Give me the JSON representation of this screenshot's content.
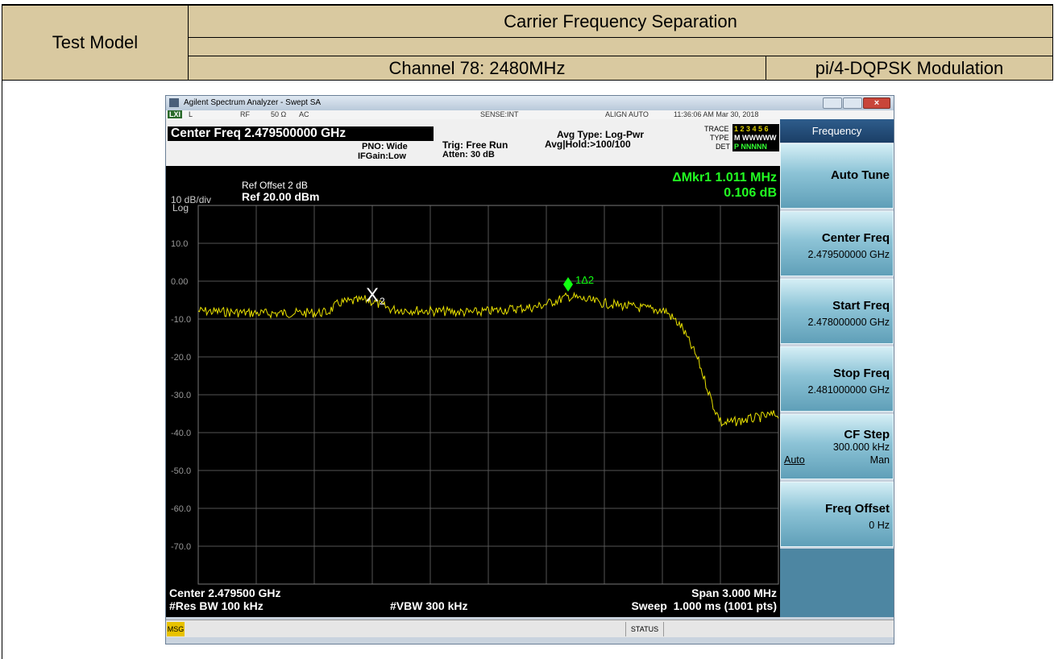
{
  "table": {
    "test_model": "Test Model",
    "title": "Carrier Frequency Separation",
    "channel": "Channel 78: 2480MHz",
    "modulation": "pi/4-DQPSK Modulation"
  },
  "analyzer": {
    "window_title": "Agilent Spectrum Analyzer - Swept SA",
    "status_row": [
      "L",
      "RF",
      "50 Ω",
      "AC",
      "SENSE:INT",
      "ALIGN AUTO",
      "11:36:06 AM Mar 30, 2018"
    ],
    "center_freq": "Center Freq 2.479500000 GHz",
    "pno": "PNO: Wide",
    "ifgain": "IFGain:Low",
    "trig": "Trig: Free Run",
    "atten": "Atten: 30 dB",
    "avg_type": "Avg Type: Log-Pwr",
    "avg_hold": "Avg|Hold:>100/100",
    "trace_labels": [
      "TRACE",
      "TYPE",
      "DET"
    ],
    "trace_values": [
      "1 2 3 4 5 6",
      "M WWWWW",
      "P NNNNN"
    ],
    "ref_offset": "Ref Offset 2 dB",
    "ref_level": "Ref 20.00 dBm",
    "scale": "10 dB/div",
    "scale_type": "Log",
    "marker_delta": "ΔMkr1 1.011 MHz",
    "marker_value": "0.106 dB",
    "y_labels": [
      "10.0",
      "0.00",
      "-10.0",
      "-20.0",
      "-30.0",
      "-40.0",
      "-50.0",
      "-60.0",
      "-70.0"
    ],
    "marker2_label": "X",
    "marker2_sub": "2",
    "marker1_label": "1Δ2",
    "center": "Center 2.479500 GHz",
    "res_bw": "#Res BW 100 kHz",
    "vbw": "#VBW 300 kHz",
    "span": "Span 3.000 MHz",
    "sweep": "Sweep  1.000 ms (1001 pts)",
    "menu_title": "Frequency",
    "softkeys": [
      {
        "label": "Auto Tune"
      },
      {
        "label": "Center Freq",
        "value": "2.479500000 GHz"
      },
      {
        "label": "Start Freq",
        "value": "2.478000000 GHz"
      },
      {
        "label": "Stop Freq",
        "value": "2.481000000 GHz"
      },
      {
        "label": "CF Step",
        "value": "300.000 kHz",
        "left": "Auto",
        "right": "Man"
      },
      {
        "label": "Freq Offset",
        "value": "0 Hz"
      }
    ],
    "msg": "MSG",
    "status": "STATUS"
  }
}
